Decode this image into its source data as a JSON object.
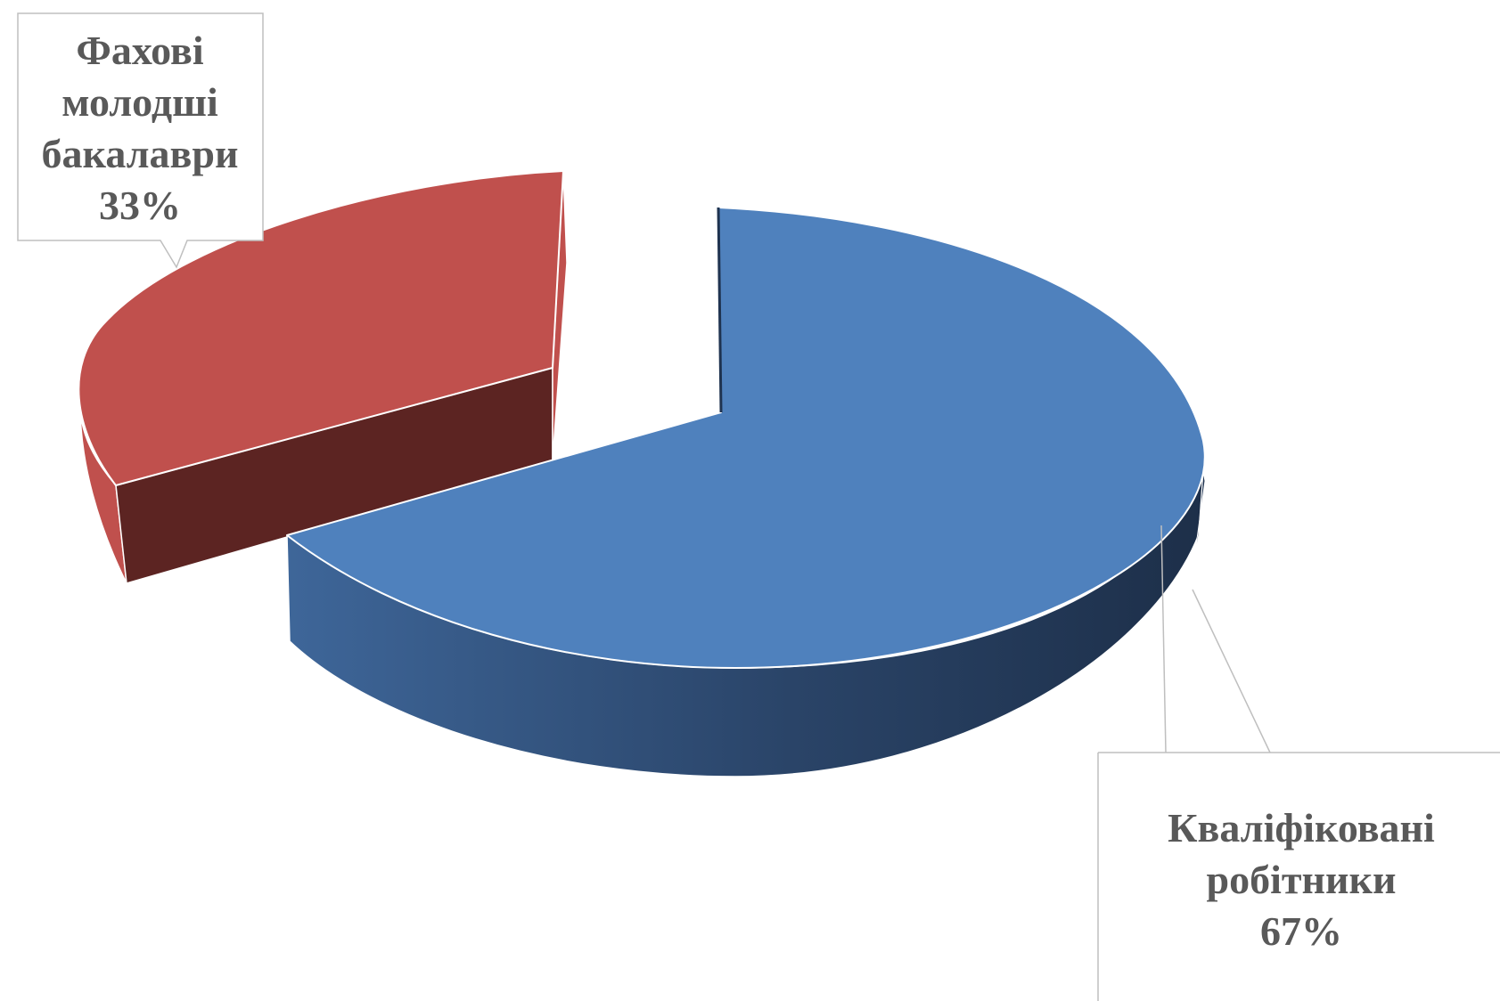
{
  "chart_data": {
    "type": "pie",
    "style": "3d-exploded",
    "title": "",
    "legend": "none",
    "slices": [
      {
        "label_lines": [
          "Фахові",
          "молодші",
          "бакалаври"
        ],
        "value": 33,
        "value_label": "33%",
        "color": "#C0504D",
        "side_color": "#5C2422",
        "exploded": true
      },
      {
        "label_lines": [
          "Кваліфіковані",
          "робітники"
        ],
        "value": 67,
        "value_label": "67%",
        "color": "#4F81BD",
        "side_color": "#1F3350",
        "exploded": false
      }
    ],
    "label_color": "#595959",
    "callout_border": "#BFBFBF",
    "edge_color": "#FFFFFF"
  }
}
